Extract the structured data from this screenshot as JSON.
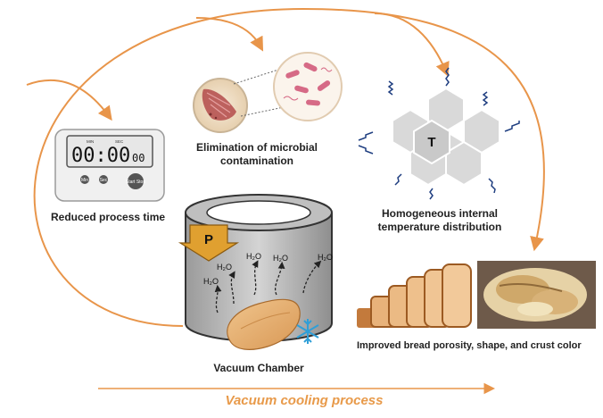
{
  "timer": {
    "display": "00:00",
    "display_small": "00",
    "header_left": "MIN",
    "header_right": "SEC",
    "btn_min": "Min",
    "btn_sec": "Sec",
    "btn_start": "Start Stop"
  },
  "labels": {
    "reduced_time": "Reduced process time",
    "microbial_line1": "Elimination of microbial",
    "microbial_line2": "contamination",
    "temperature_line1": "Homogeneous internal",
    "temperature_line2": "temperature distribution",
    "bread": "Improved bread porosity, shape, and crust color",
    "chamber": "Vacuum Chamber",
    "process": "Vacuum cooling process"
  },
  "chamber": {
    "pressure": "P",
    "vapor": "H₂O"
  },
  "hexagon": {
    "center": "T"
  },
  "colors": {
    "arrow": "#e8954a",
    "pressure_arrow": "#e0a030",
    "hexagon_fill": "#d9d9d9",
    "wavy": "#1f3e80",
    "snowflake": "#2f9fd8",
    "bacteria": "#d66a86"
  }
}
